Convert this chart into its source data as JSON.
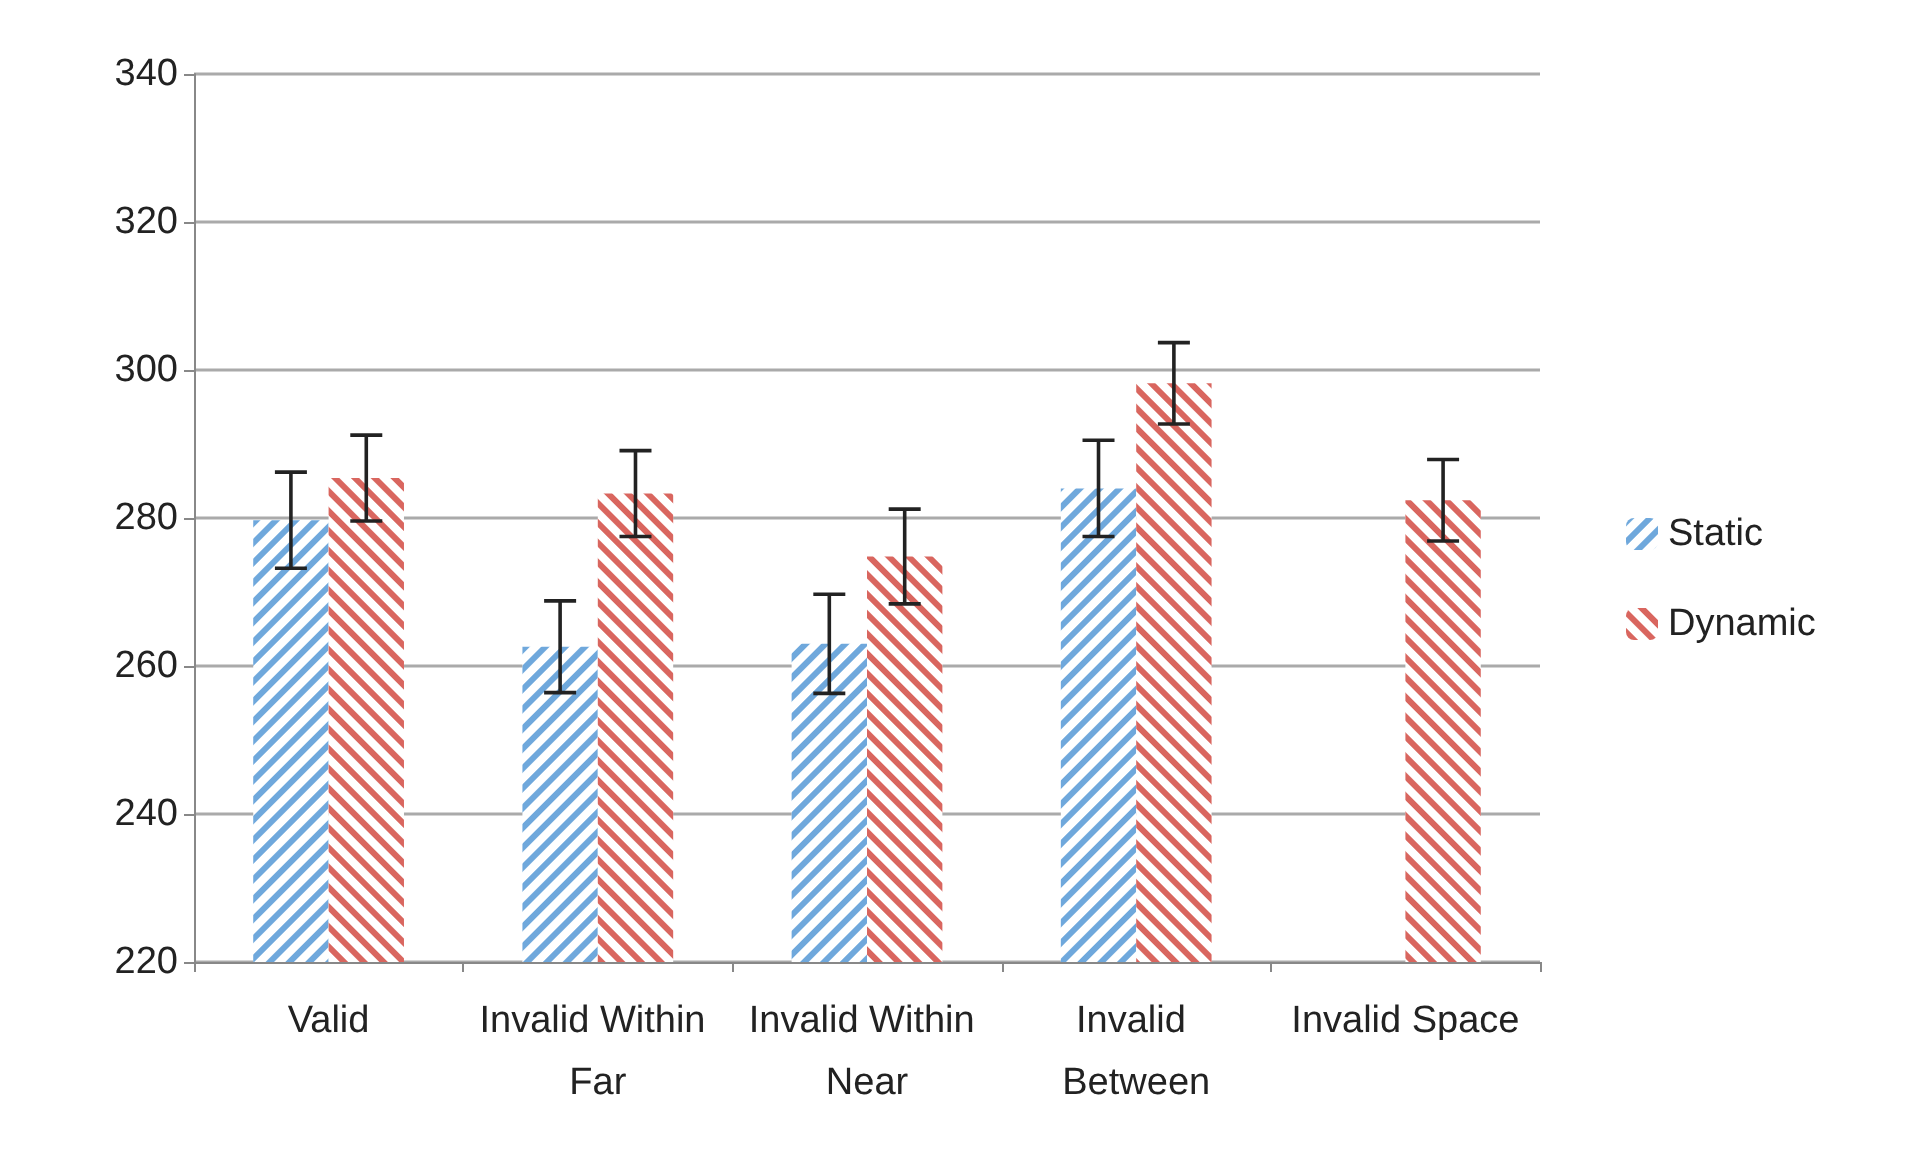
{
  "chart_data": {
    "type": "bar",
    "categories": [
      "Valid",
      "Invalid Within Far",
      "Invalid Within Near",
      "Invalid Between",
      "Invalid Space"
    ],
    "series": [
      {
        "name": "Static",
        "color": "#6fa8dc",
        "values": [
          279.7,
          262.6,
          263,
          284,
          null
        ],
        "errors": [
          6.5,
          6.2,
          6.7,
          6.5,
          null
        ]
      },
      {
        "name": "Dynamic",
        "color": "#d9665f",
        "values": [
          285.4,
          283.3,
          274.8,
          298.2,
          282.4
        ],
        "errors": [
          5.8,
          5.8,
          6.4,
          5.5,
          5.5
        ]
      }
    ],
    "ylim": [
      220,
      340
    ],
    "yticks": [
      220,
      240,
      260,
      280,
      300,
      320,
      340
    ],
    "grid": "y",
    "legend": "right"
  }
}
